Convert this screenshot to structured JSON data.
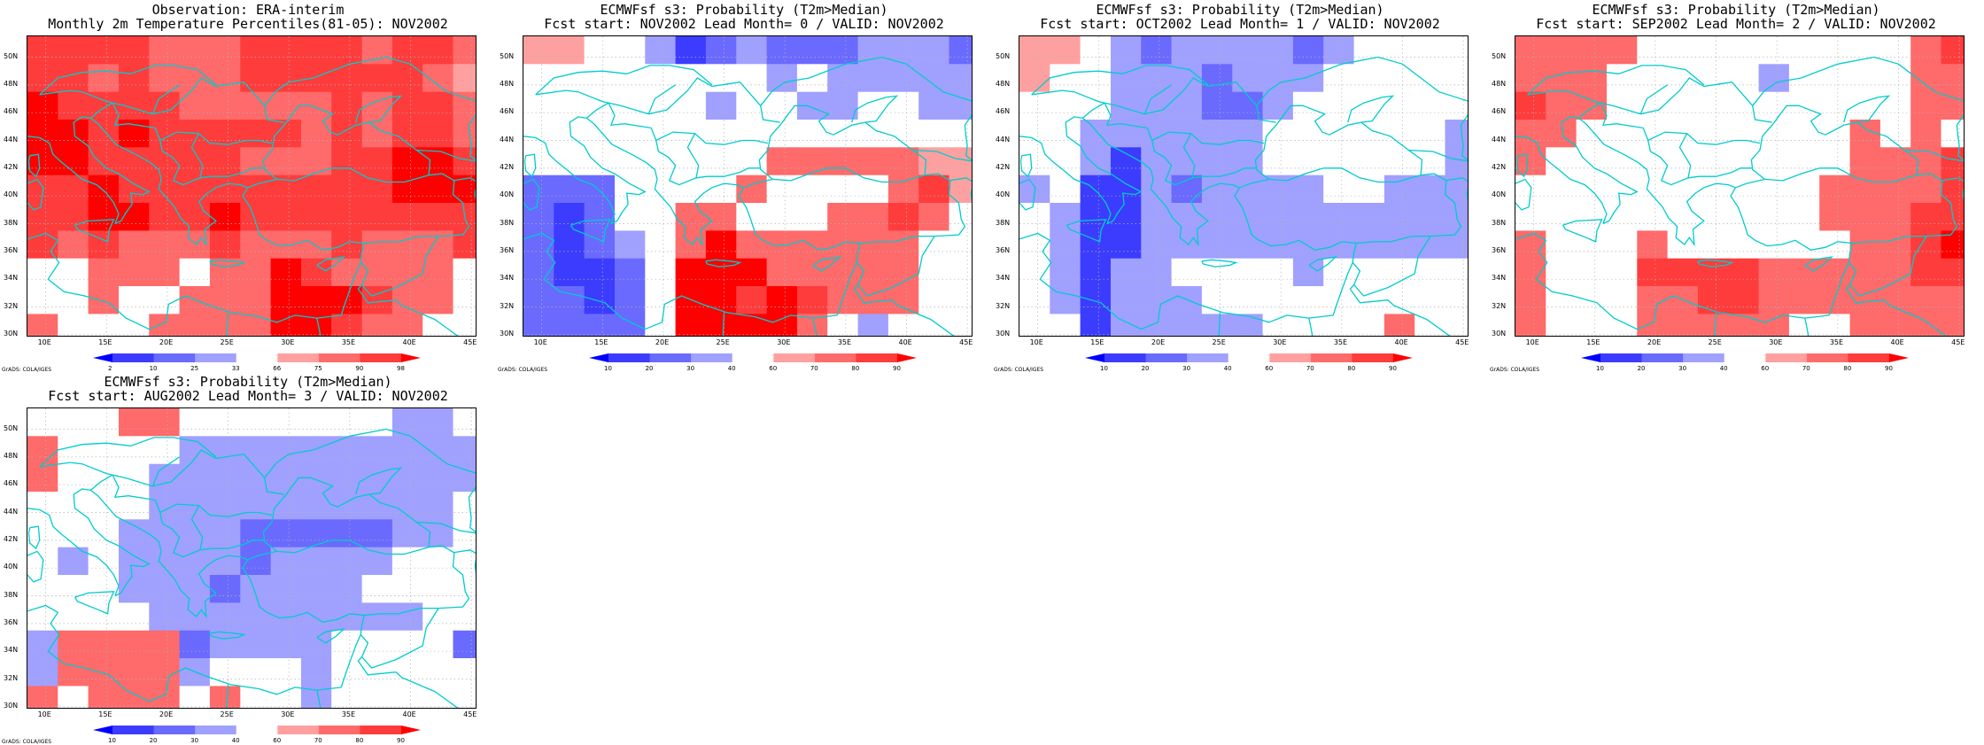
{
  "figure": {
    "credit": "GrADS: COLA/IGES",
    "lon_ticks": [
      "10E",
      "15E",
      "20E",
      "25E",
      "30E",
      "35E",
      "40E",
      "45E"
    ],
    "lat_ticks": [
      "30N",
      "32N",
      "34N",
      "36N",
      "38N",
      "40N",
      "42N",
      "44N",
      "46N",
      "48N",
      "50N"
    ],
    "lon_range": [
      8.5,
      45.5
    ],
    "lat_range": [
      29.8,
      51.5
    ],
    "coast_color": "#00cccc"
  },
  "panels": [
    {
      "title_line1": "Observation: ERA-interim",
      "title_line2": "Monthly 2m Temperature Percentiles(81-05): NOV2002",
      "colorbar": {
        "labels": [
          "2",
          "10",
          "25",
          "33",
          "66",
          "75",
          "90",
          "98"
        ],
        "colors": [
          "#0000ff",
          "#3c3cff",
          "#6a6aff",
          "#a0a0ff",
          "#ffffff",
          "#ffa0a0",
          "#ff6a6a",
          "#ff3c3c",
          "#ff0000"
        ]
      },
      "chart_data": {
        "type": "heatmap",
        "lon_start": 8.5,
        "lon_step": 2.5,
        "lat_start": 51.5,
        "lat_step": -2,
        "grid": [
          [
            7,
            7,
            7,
            7,
            6,
            6,
            6,
            7,
            7,
            7,
            7,
            6,
            7,
            7,
            6
          ],
          [
            7,
            7,
            6,
            7,
            6,
            6,
            6,
            7,
            7,
            7,
            7,
            7,
            7,
            6,
            5
          ],
          [
            8,
            7,
            7,
            7,
            7,
            6,
            6,
            6,
            6,
            6,
            7,
            6,
            7,
            7,
            6
          ],
          [
            8,
            8,
            7,
            8,
            7,
            7,
            7,
            7,
            7,
            6,
            7,
            6,
            7,
            7,
            6
          ],
          [
            8,
            8,
            7,
            7,
            7,
            7,
            7,
            6,
            6,
            6,
            7,
            7,
            8,
            8,
            7
          ],
          [
            7,
            7,
            8,
            7,
            7,
            7,
            7,
            7,
            7,
            7,
            7,
            7,
            8,
            8,
            8
          ],
          [
            7,
            7,
            8,
            8,
            7,
            7,
            8,
            7,
            7,
            7,
            7,
            7,
            7,
            7,
            7
          ],
          [
            7,
            6,
            7,
            6,
            6,
            6,
            7,
            6,
            6,
            6,
            7,
            6,
            6,
            6,
            7
          ],
          [
            4,
            4,
            6,
            6,
            6,
            4,
            6,
            6,
            8,
            7,
            6,
            6,
            6,
            6,
            4
          ],
          [
            4,
            4,
            6,
            4,
            4,
            6,
            6,
            6,
            8,
            8,
            8,
            7,
            6,
            6,
            4
          ],
          [
            6,
            4,
            4,
            4,
            6,
            6,
            6,
            6,
            8,
            8,
            7,
            6,
            6,
            4,
            4
          ]
        ]
      }
    },
    {
      "title_line1": "ECMWFsf s3: Probability (T2m>Median)",
      "title_line2": "Fcst start: NOV2002  Lead Month= 0 / VALID: NOV2002",
      "colorbar": {
        "labels": [
          "10",
          "20",
          "30",
          "40",
          "60",
          "70",
          "80",
          "90"
        ],
        "colors": [
          "#0000ff",
          "#3c3cff",
          "#6a6aff",
          "#a0a0ff",
          "#ffffff",
          "#ffa0a0",
          "#ff6a6a",
          "#ff3c3c",
          "#ff0000"
        ]
      },
      "chart_data": {
        "type": "heatmap",
        "lon_start": 8.5,
        "lon_step": 2.5,
        "lat_start": 51.5,
        "lat_step": -2,
        "grid": [
          [
            5,
            5,
            4,
            4,
            3,
            1,
            2,
            3,
            2,
            2,
            2,
            3,
            3,
            3,
            2
          ],
          [
            4,
            4,
            4,
            4,
            4,
            4,
            4,
            4,
            3,
            4,
            3,
            3,
            3,
            3,
            3
          ],
          [
            4,
            4,
            4,
            4,
            4,
            4,
            3,
            4,
            4,
            3,
            3,
            4,
            4,
            3,
            3
          ],
          [
            4,
            4,
            4,
            4,
            4,
            4,
            4,
            4,
            4,
            4,
            4,
            4,
            4,
            4,
            4
          ],
          [
            4,
            4,
            4,
            4,
            4,
            4,
            4,
            4,
            6,
            6,
            6,
            6,
            6,
            5,
            5
          ],
          [
            2,
            2,
            2,
            4,
            4,
            4,
            4,
            6,
            4,
            4,
            4,
            4,
            6,
            7,
            5
          ],
          [
            2,
            1,
            2,
            4,
            4,
            6,
            6,
            4,
            4,
            4,
            6,
            6,
            7,
            6,
            4
          ],
          [
            2,
            1,
            2,
            3,
            4,
            6,
            8,
            6,
            6,
            6,
            6,
            6,
            6,
            4,
            4
          ],
          [
            2,
            1,
            1,
            2,
            4,
            8,
            8,
            8,
            6,
            6,
            6,
            6,
            6,
            4,
            4
          ],
          [
            2,
            2,
            1,
            2,
            4,
            8,
            8,
            7,
            8,
            7,
            6,
            6,
            6,
            4,
            4
          ],
          [
            2,
            2,
            2,
            2,
            4,
            8,
            8,
            8,
            8,
            6,
            4,
            3,
            4,
            4,
            4
          ]
        ]
      }
    },
    {
      "title_line1": "ECMWFsf s3: Probability (T2m>Median)",
      "title_line2": "Fcst start: OCT2002  Lead Month= 1 / VALID: NOV2002",
      "colorbar": {
        "labels": [
          "10",
          "20",
          "30",
          "40",
          "60",
          "70",
          "80",
          "90"
        ],
        "colors": [
          "#0000ff",
          "#3c3cff",
          "#6a6aff",
          "#a0a0ff",
          "#ffffff",
          "#ffa0a0",
          "#ff6a6a",
          "#ff3c3c",
          "#ff0000"
        ]
      },
      "chart_data": {
        "type": "heatmap",
        "lon_start": 8.5,
        "lon_step": 2.5,
        "lat_start": 51.5,
        "lat_step": -2,
        "grid": [
          [
            5,
            5,
            4,
            3,
            2,
            3,
            3,
            3,
            3,
            2,
            3,
            4,
            4,
            4,
            4
          ],
          [
            5,
            4,
            4,
            3,
            3,
            3,
            2,
            3,
            3,
            3,
            4,
            4,
            4,
            4,
            4
          ],
          [
            4,
            4,
            4,
            3,
            3,
            3,
            2,
            2,
            3,
            4,
            4,
            4,
            4,
            4,
            4
          ],
          [
            4,
            4,
            3,
            3,
            3,
            3,
            3,
            3,
            4,
            4,
            4,
            4,
            4,
            4,
            3
          ],
          [
            4,
            4,
            3,
            1,
            3,
            3,
            3,
            3,
            4,
            4,
            4,
            4,
            4,
            4,
            3
          ],
          [
            3,
            4,
            1,
            1,
            3,
            2,
            3,
            3,
            3,
            3,
            4,
            4,
            3,
            3,
            3
          ],
          [
            4,
            3,
            1,
            1,
            3,
            3,
            3,
            3,
            3,
            3,
            3,
            3,
            3,
            3,
            3
          ],
          [
            4,
            3,
            1,
            1,
            3,
            3,
            3,
            3,
            3,
            3,
            3,
            3,
            3,
            3,
            3
          ],
          [
            4,
            3,
            1,
            3,
            3,
            4,
            4,
            4,
            4,
            3,
            4,
            4,
            4,
            4,
            4
          ],
          [
            4,
            3,
            1,
            3,
            3,
            3,
            4,
            4,
            4,
            4,
            4,
            4,
            4,
            4,
            4
          ],
          [
            4,
            4,
            1,
            3,
            3,
            3,
            3,
            3,
            4,
            4,
            4,
            4,
            6,
            4,
            4
          ]
        ]
      }
    },
    {
      "title_line1": "ECMWFsf s3: Probability (T2m>Median)",
      "title_line2": "Fcst start: SEP2002  Lead Month= 2 / VALID: NOV2002",
      "colorbar": {
        "labels": [
          "10",
          "20",
          "30",
          "40",
          "60",
          "70",
          "80",
          "90"
        ],
        "colors": [
          "#0000ff",
          "#3c3cff",
          "#6a6aff",
          "#a0a0ff",
          "#ffffff",
          "#ffa0a0",
          "#ff6a6a",
          "#ff3c3c",
          "#ff0000"
        ]
      },
      "chart_data": {
        "type": "heatmap",
        "lon_start": 8.5,
        "lon_step": 2.5,
        "lat_start": 51.5,
        "lat_step": -2,
        "grid": [
          [
            6,
            6,
            6,
            6,
            4,
            4,
            4,
            4,
            4,
            4,
            4,
            4,
            4,
            6,
            7
          ],
          [
            6,
            6,
            6,
            4,
            4,
            4,
            4,
            4,
            3,
            4,
            4,
            4,
            4,
            6,
            6
          ],
          [
            7,
            6,
            6,
            4,
            4,
            4,
            4,
            4,
            4,
            4,
            4,
            4,
            4,
            6,
            6
          ],
          [
            6,
            6,
            4,
            4,
            4,
            4,
            4,
            4,
            4,
            4,
            4,
            6,
            4,
            6,
            4
          ],
          [
            6,
            4,
            4,
            4,
            4,
            4,
            4,
            4,
            4,
            4,
            4,
            6,
            6,
            6,
            7
          ],
          [
            4,
            4,
            4,
            4,
            4,
            4,
            4,
            4,
            4,
            4,
            6,
            6,
            6,
            6,
            7
          ],
          [
            4,
            4,
            4,
            4,
            4,
            4,
            4,
            4,
            4,
            4,
            6,
            6,
            6,
            7,
            7
          ],
          [
            6,
            4,
            4,
            4,
            6,
            4,
            4,
            4,
            4,
            4,
            4,
            6,
            6,
            7,
            8
          ],
          [
            6,
            4,
            4,
            4,
            7,
            7,
            7,
            7,
            6,
            6,
            6,
            6,
            6,
            7,
            7
          ],
          [
            6,
            4,
            4,
            4,
            6,
            6,
            7,
            7,
            6,
            6,
            6,
            6,
            6,
            6,
            6
          ],
          [
            6,
            4,
            4,
            4,
            6,
            6,
            6,
            6,
            6,
            4,
            4,
            6,
            6,
            6,
            6
          ]
        ]
      }
    },
    {
      "title_line1": "ECMWFsf s3: Probability (T2m>Median)",
      "title_line2": "Fcst start: AUG2002  Lead Month= 3 / VALID: NOV2002",
      "colorbar": {
        "labels": [
          "10",
          "20",
          "30",
          "40",
          "60",
          "70",
          "80",
          "90"
        ],
        "colors": [
          "#0000ff",
          "#3c3cff",
          "#6a6aff",
          "#a0a0ff",
          "#ffffff",
          "#ffa0a0",
          "#ff6a6a",
          "#ff3c3c",
          "#ff0000"
        ]
      },
      "chart_data": {
        "type": "heatmap",
        "lon_start": 8.5,
        "lon_step": 2.5,
        "lat_start": 51.5,
        "lat_step": -2,
        "grid": [
          [
            4,
            4,
            4,
            6,
            6,
            4,
            4,
            4,
            4,
            4,
            4,
            4,
            3,
            3,
            4
          ],
          [
            6,
            4,
            4,
            4,
            4,
            3,
            3,
            3,
            3,
            3,
            3,
            3,
            3,
            3,
            3
          ],
          [
            6,
            4,
            4,
            4,
            3,
            3,
            3,
            3,
            3,
            3,
            3,
            3,
            3,
            3,
            3
          ],
          [
            4,
            4,
            4,
            4,
            3,
            3,
            3,
            3,
            3,
            3,
            3,
            3,
            3,
            3,
            4
          ],
          [
            4,
            4,
            4,
            3,
            3,
            3,
            3,
            2,
            2,
            2,
            2,
            2,
            3,
            3,
            4
          ],
          [
            4,
            3,
            4,
            3,
            3,
            3,
            3,
            2,
            3,
            3,
            3,
            3,
            4,
            4,
            4
          ],
          [
            4,
            4,
            4,
            3,
            3,
            3,
            2,
            3,
            3,
            3,
            3,
            4,
            4,
            4,
            4
          ],
          [
            4,
            4,
            4,
            4,
            3,
            3,
            3,
            3,
            3,
            3,
            3,
            3,
            3,
            4,
            4
          ],
          [
            3,
            6,
            6,
            6,
            6,
            2,
            3,
            3,
            3,
            3,
            4,
            4,
            4,
            4,
            2
          ],
          [
            3,
            6,
            6,
            6,
            6,
            3,
            4,
            4,
            4,
            3,
            4,
            4,
            4,
            4,
            4
          ],
          [
            6,
            4,
            6,
            6,
            6,
            4,
            6,
            4,
            4,
            3,
            4,
            4,
            4,
            4,
            4
          ]
        ]
      }
    }
  ]
}
